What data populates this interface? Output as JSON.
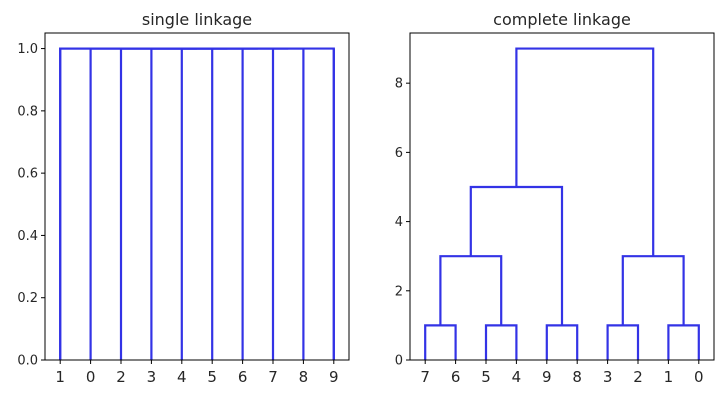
{
  "chart_data": [
    {
      "type": "dendrogram",
      "title": "single linkage",
      "xlabel": "",
      "ylabel": "",
      "ylim": [
        0,
        1.05
      ],
      "yticks": [
        0.0,
        0.2,
        0.4,
        0.6,
        0.8,
        1.0
      ],
      "ytick_labels": [
        "0.0",
        "0.2",
        "0.4",
        "0.6",
        "0.8",
        "1.0"
      ],
      "leaf_labels": [
        "1",
        "0",
        "2",
        "3",
        "4",
        "5",
        "6",
        "7",
        "8",
        "9"
      ],
      "links": [
        {
          "left": 7,
          "right": 8,
          "left_height": 0,
          "right_height": 0,
          "height": 1.0
        },
        {
          "left": 6,
          "right": 7.5,
          "left_height": 0,
          "right_height": 1.0,
          "height": 1.0
        },
        {
          "left": 5,
          "right": 7,
          "left_height": 0,
          "right_height": 1.0,
          "height": 1.0
        },
        {
          "left": 4,
          "right": 6.5,
          "left_height": 0,
          "right_height": 1.0,
          "height": 1.0
        },
        {
          "left": 3,
          "right": 6,
          "left_height": 0,
          "right_height": 1.0,
          "height": 1.0
        },
        {
          "left": 2,
          "right": 5.5,
          "left_height": 0,
          "right_height": 1.0,
          "height": 1.0
        },
        {
          "left": 1,
          "right": 5,
          "left_height": 0,
          "right_height": 1.0,
          "height": 1.0
        },
        {
          "left": 0,
          "right": 4.5,
          "left_height": 0,
          "right_height": 1.0,
          "height": 1.0
        },
        {
          "left": 9,
          "right": 9,
          "left_height": 0,
          "right_height": 1.0,
          "height": 1.0
        },
        {
          "left": 0,
          "right": 9,
          "left_height": 0,
          "right_height": 0,
          "height": 1.0
        }
      ],
      "color": "#3333e6"
    },
    {
      "type": "dendrogram",
      "title": "complete linkage",
      "xlabel": "",
      "ylabel": "",
      "ylim": [
        0,
        9.45
      ],
      "yticks": [
        0,
        2,
        4,
        6,
        8
      ],
      "ytick_labels": [
        "0",
        "2",
        "4",
        "6",
        "8"
      ],
      "leaf_labels": [
        "7",
        "6",
        "5",
        "4",
        "9",
        "8",
        "3",
        "2",
        "1",
        "0"
      ],
      "links": [
        {
          "left": 0,
          "right": 1,
          "left_height": 0,
          "right_height": 0,
          "height": 1.0
        },
        {
          "left": 2,
          "right": 3,
          "left_height": 0,
          "right_height": 0,
          "height": 1.0
        },
        {
          "left": 4,
          "right": 5,
          "left_height": 0,
          "right_height": 0,
          "height": 1.0
        },
        {
          "left": 6,
          "right": 7,
          "left_height": 0,
          "right_height": 0,
          "height": 1.0
        },
        {
          "left": 8,
          "right": 9,
          "left_height": 0,
          "right_height": 0,
          "height": 1.0
        },
        {
          "left": 0.5,
          "right": 2.5,
          "left_height": 1.0,
          "right_height": 1.0,
          "height": 3.0
        },
        {
          "left": 1.5,
          "right": 4.5,
          "left_height": 3.0,
          "right_height": 1.0,
          "height": 5.0
        },
        {
          "left": 6.5,
          "right": 8.5,
          "left_height": 1.0,
          "right_height": 1.0,
          "height": 3.0
        },
        {
          "left": 3.0,
          "right": 7.5,
          "left_height": 5.0,
          "right_height": 3.0,
          "height": 9.0
        }
      ],
      "color": "#3333e6"
    }
  ]
}
